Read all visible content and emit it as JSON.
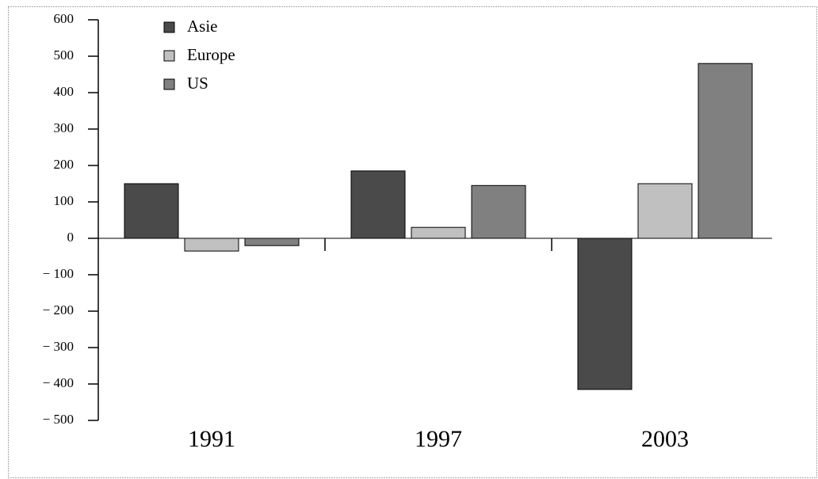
{
  "chart_data": {
    "type": "bar",
    "categories": [
      "1991",
      "1997",
      "2003"
    ],
    "series": [
      {
        "name": "Asie",
        "color": "#4a4a4a",
        "values": [
          150,
          185,
          -415
        ]
      },
      {
        "name": "Europe",
        "color": "#c0c0c0",
        "values": [
          -35,
          30,
          150
        ]
      },
      {
        "name": "US",
        "color": "#808080",
        "values": [
          -20,
          145,
          480
        ]
      }
    ],
    "ylim": [
      -500,
      600
    ],
    "yticks": [
      {
        "value": -500,
        "label": "− 500"
      },
      {
        "value": -400,
        "label": "− 400"
      },
      {
        "value": -300,
        "label": "− 300"
      },
      {
        "value": -200,
        "label": "− 200"
      },
      {
        "value": -100,
        "label": "− 100"
      },
      0,
      100,
      200,
      300,
      400,
      500,
      600
    ],
    "legend": "top-left"
  }
}
